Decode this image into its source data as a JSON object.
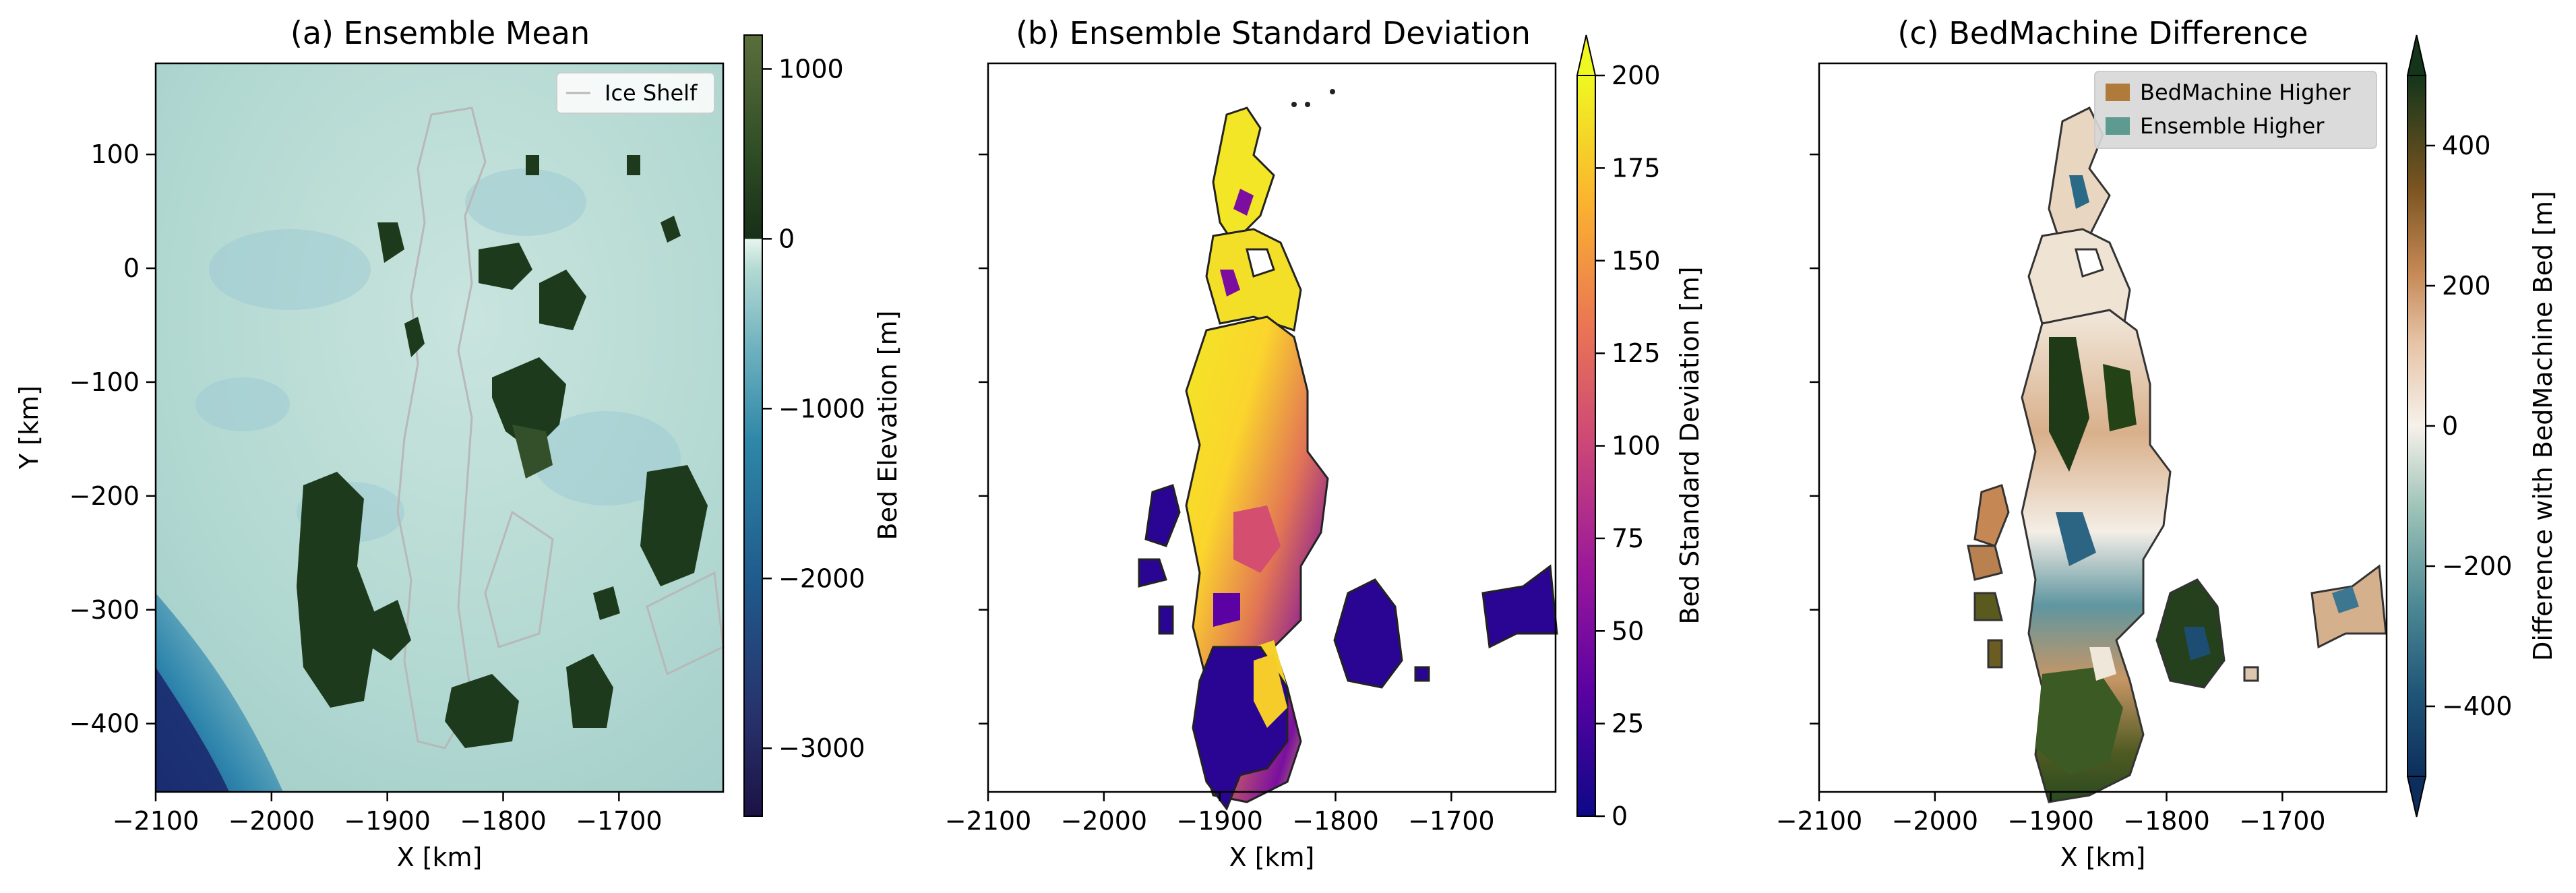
{
  "colors": {
    "ensemble_mean_cmap": [
      "#1b1244",
      "#27306a",
      "#1f5a8c",
      "#2e87a8",
      "#5aa7b8",
      "#8cc1c6",
      "#b9dcd6",
      "#e2f2ea"
    ],
    "elevation_above_zero": [
      "#183818",
      "#2f4d26",
      "#4b6a37",
      "#5b6e3c"
    ],
    "std_cmap": [
      "#0d0887",
      "#5b02a3",
      "#9a179b",
      "#cb4678",
      "#eb7852",
      "#fbb32f",
      "#eff821"
    ],
    "diff_cmap": [
      "#0d2e5c",
      "#2b6a86",
      "#75a5a5",
      "#bcd6c7",
      "#f6f1ea",
      "#e6c3a5",
      "#c58855",
      "#8a5a20",
      "#4d4a16",
      "#1a3b16"
    ],
    "ice_shelf_line": "#b8b8b8",
    "bedmachine_higher": "#b07b3a",
    "ensemble_higher": "#5d9a8f"
  },
  "chart_data": [
    {
      "type": "heatmap",
      "title": "(a) Ensemble Mean",
      "xlabel": "X [km]",
      "ylabel": "Y [km]",
      "xlim": [
        -2100,
        -1610
      ],
      "ylim": [
        -460,
        180
      ],
      "xticks": [
        -2100,
        -2000,
        -1900,
        -1800,
        -1700
      ],
      "xticklabels": [
        "−2100",
        "−2000",
        "−1900",
        "−1800",
        "−1700"
      ],
      "yticks": [
        100,
        0,
        -100,
        -200,
        -300,
        -400
      ],
      "yticklabels": [
        "100",
        "0",
        "−100",
        "−200",
        "−300",
        "−400"
      ],
      "legend": {
        "placement": "top-right",
        "entries": [
          "Ice Shelf"
        ]
      },
      "colorbar": {
        "label": "Bed Elevation [m]",
        "range": [
          -3400,
          1200
        ],
        "ticks": [
          1000,
          0,
          -1000,
          -2000,
          -3000
        ],
        "ticklabels": [
          "1000",
          "0",
          "−1000",
          "−2000",
          "−3000"
        ]
      }
    },
    {
      "type": "heatmap",
      "title": "(b) Ensemble Standard Deviation",
      "xlabel": "X [km]",
      "xlim": [
        -2100,
        -1610
      ],
      "ylim": [
        -460,
        180
      ],
      "xticks": [
        -2100,
        -2000,
        -1900,
        -1800,
        -1700
      ],
      "xticklabels": [
        "−2100",
        "−2000",
        "−1900",
        "−1800",
        "−1700"
      ],
      "yticks": [
        100,
        0,
        -100,
        -200,
        -300,
        -400
      ],
      "colorbar": {
        "label": "Bed Standard Deviation [m]",
        "range": [
          0,
          200
        ],
        "extend": "max",
        "ticks": [
          200,
          175,
          150,
          125,
          100,
          75,
          50,
          25,
          0
        ],
        "ticklabels": [
          "200",
          "175",
          "150",
          "125",
          "100",
          "75",
          "50",
          "25",
          "0"
        ]
      }
    },
    {
      "type": "heatmap",
      "title": "(c) BedMachine Difference",
      "xlabel": "X [km]",
      "xlim": [
        -2100,
        -1610
      ],
      "ylim": [
        -460,
        180
      ],
      "xticks": [
        -2100,
        -2000,
        -1900,
        -1800,
        -1700
      ],
      "xticklabels": [
        "−2100",
        "−2000",
        "−1900",
        "−1800",
        "−1700"
      ],
      "yticks": [
        100,
        0,
        -100,
        -200,
        -300,
        -400
      ],
      "legend": {
        "placement": "top-right",
        "entries": [
          "BedMachine Higher",
          "Ensemble Higher"
        ]
      },
      "colorbar": {
        "label": "Difference with BedMachine Bed [m]",
        "range": [
          -500,
          500
        ],
        "extend": "both",
        "ticks": [
          400,
          200,
          0,
          -200,
          -400
        ],
        "ticklabels": [
          "400",
          "200",
          "0",
          "−200",
          "−400"
        ]
      }
    }
  ]
}
